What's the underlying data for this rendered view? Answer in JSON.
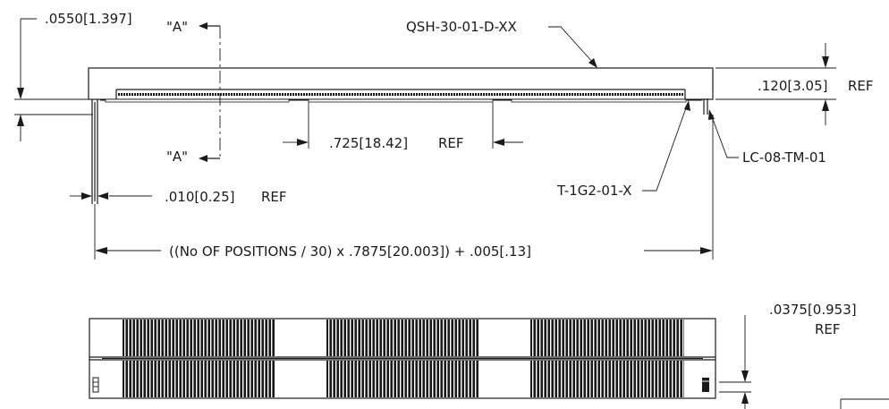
{
  "labels": {
    "dim_top_left": ".0550[1.397]",
    "section_a_top": "\"A\"",
    "section_a_bottom": "\"A\"",
    "part_number": "QSH-30-01-D-XX",
    "dim_height": ".120[3.05]",
    "dim_height_ref": "REF",
    "dim_pitch": ".725[18.42]",
    "dim_pitch_ref": "REF",
    "lc_part": "LC-08-TM-01",
    "dim_thickness": ".010[0.25]",
    "dim_thickness_ref": "REF",
    "t_part": "T-1G2-01-X",
    "length_formula": "((No OF POSITIONS / 30) x .7875[20.003]) + .005[.13]",
    "dim_bottom_right": ".0375[0.953]",
    "dim_bottom_right_ref": "REF"
  }
}
